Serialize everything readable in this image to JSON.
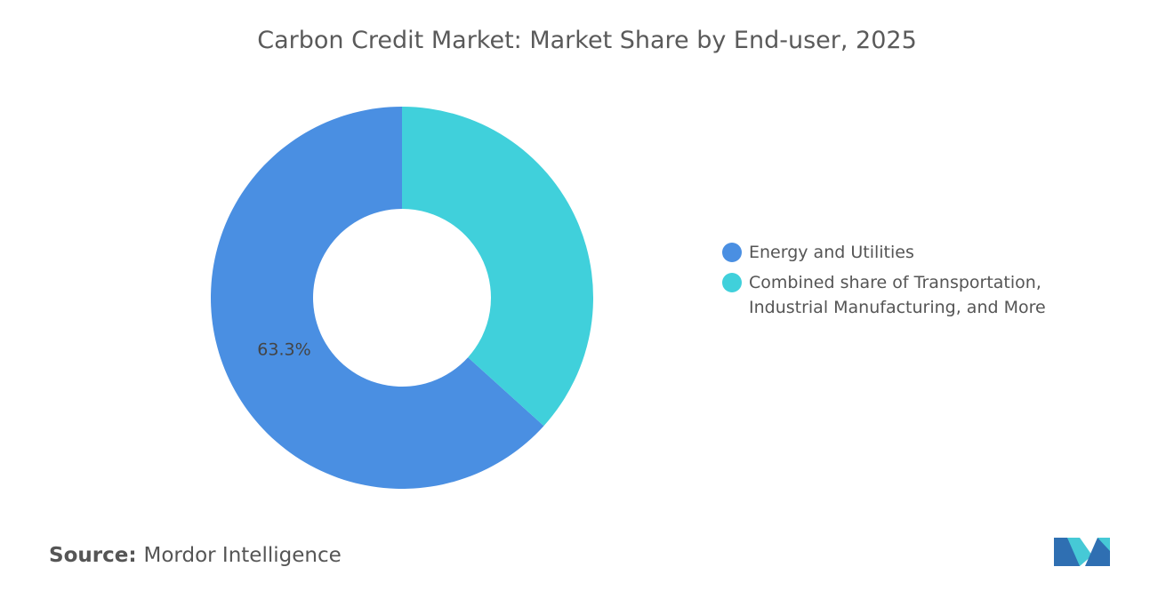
{
  "chart_data": {
    "type": "donut",
    "title": "Carbon Credit Market: Market Share by End-user, 2025",
    "categories": [
      "Energy and Utilities",
      "Combined share of Transportation, Industrial Manufacturing, and More"
    ],
    "values": [
      63.3,
      36.7
    ],
    "value_labels": [
      "63.3%",
      null
    ],
    "colors": [
      "#4a8fe2",
      "#40d0db"
    ],
    "source_label": "Source:",
    "source": "Mordor Intelligence"
  }
}
